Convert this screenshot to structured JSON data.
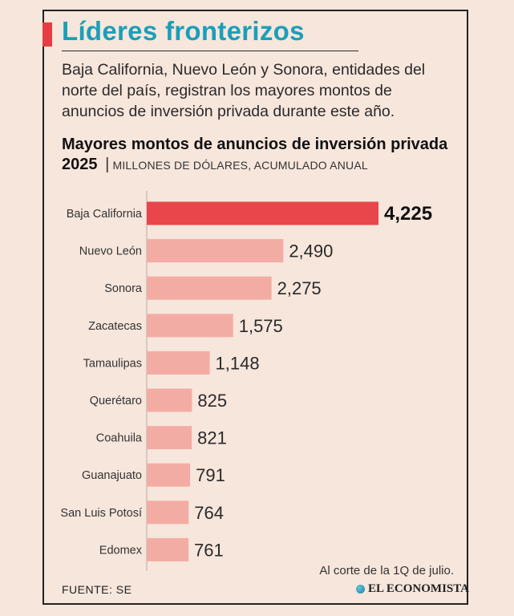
{
  "header": {
    "title": "Líderes fronterizos",
    "lede": "Baja California, Nuevo León y Sonora, entidades del norte del país, registran los mayores montos de anuncios de inversión privada durante este año."
  },
  "chart_meta": {
    "title": "Mayores montos de anuncios de inversión privada 2025",
    "separator": "|",
    "unit_label": "MILLONES DE DÓLARES, ACUMULADO ANUAL"
  },
  "chart_data": {
    "type": "bar",
    "orientation": "horizontal",
    "title": "Mayores montos de anuncios de inversión privada 2025",
    "subtitle": "MILLONES DE DÓLARES, ACUMULADO ANUAL",
    "categories": [
      "Baja California",
      "Nuevo León",
      "Sonora",
      "Zacatecas",
      "Tamaulipas",
      "Querétaro",
      "Coahuila",
      "Guanajuato",
      "San Luis Potosí",
      "Edomex"
    ],
    "values": [
      4225,
      2490,
      2275,
      1575,
      1148,
      825,
      821,
      791,
      764,
      761
    ],
    "value_labels": [
      "4,225",
      "2,490",
      "2,275",
      "1,575",
      "1,148",
      "825",
      "821",
      "791",
      "764",
      "761"
    ],
    "highlight_index": 0,
    "colors": {
      "highlight": "#e8464a",
      "bar": "#f3aca3",
      "axis": "#b9aca6"
    },
    "grid": false,
    "legend": "none"
  },
  "footer": {
    "note": "Al corte de la 1Q de julio.",
    "source": "FUENTE: SE",
    "logo_text": "EL ECONOMISTA",
    "logo_icon": "globe-icon"
  }
}
